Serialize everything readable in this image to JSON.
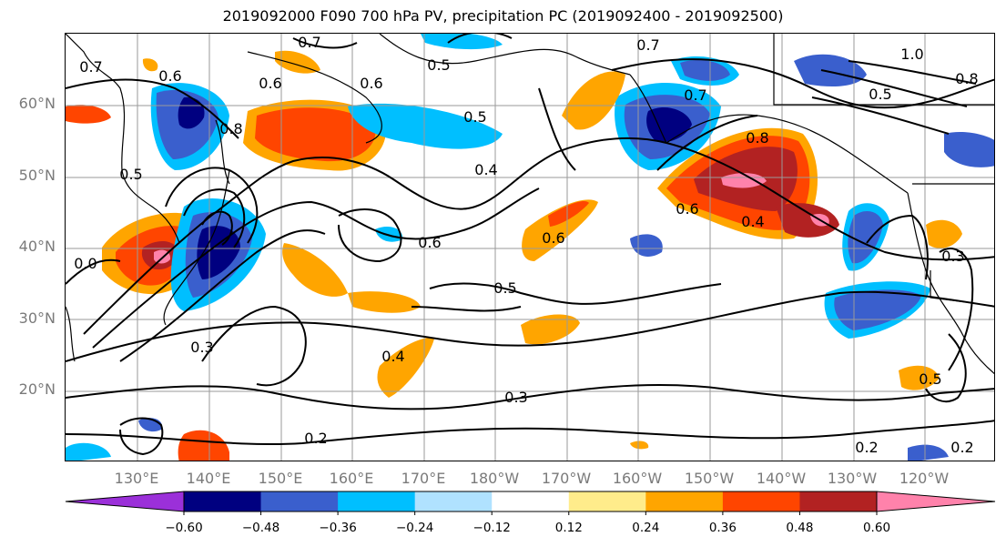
{
  "title": "2019092000 F090 700 hPa PV, precipitation PC (2019092400 - 2019092500)",
  "map": {
    "lat_labels": [
      "60°N",
      "50°N",
      "40°N",
      "30°N",
      "20°N"
    ],
    "lon_labels": [
      "130°E",
      "140°E",
      "150°E",
      "160°E",
      "170°E",
      "180°W",
      "170°W",
      "160°W",
      "150°W",
      "140°W",
      "130°W",
      "120°W"
    ],
    "contour_labels": [
      {
        "text": "0.7"
      },
      {
        "text": "0.6"
      },
      {
        "text": "0.6"
      },
      {
        "text": "0.6"
      },
      {
        "text": "0.8"
      },
      {
        "text": "0.5"
      },
      {
        "text": "0.5"
      },
      {
        "text": "0.7"
      },
      {
        "text": "0.4"
      },
      {
        "text": "0.5"
      },
      {
        "text": "0.6"
      },
      {
        "text": "0.6"
      },
      {
        "text": "0.6"
      },
      {
        "text": "0.4"
      },
      {
        "text": "0.8"
      },
      {
        "text": "0.7"
      },
      {
        "text": "1.0"
      },
      {
        "text": "0.8"
      },
      {
        "text": "0.5"
      },
      {
        "text": "0.4"
      },
      {
        "text": "0.3"
      },
      {
        "text": "0.3"
      },
      {
        "text": "0.2"
      },
      {
        "text": "0.2"
      },
      {
        "text": "0.2"
      },
      {
        "text": "0.5"
      },
      {
        "text": "0.5"
      },
      {
        "text": "0.3"
      },
      {
        "text": "0.7"
      },
      {
        "text": "0.0"
      }
    ]
  },
  "colorbar": {
    "colors": [
      "#9b30d9",
      "#000080",
      "#3a5fcd",
      "#00bfff",
      "#b0e2ff",
      "#ffffff",
      "#ffec8b",
      "#ffa500",
      "#ff4500",
      "#b22222",
      "#ff82ab"
    ],
    "tick_labels": [
      "−0.60",
      "−0.48",
      "−0.36",
      "−0.24",
      "−0.12",
      "0.12",
      "0.24",
      "0.36",
      "0.48",
      "0.60"
    ]
  }
}
